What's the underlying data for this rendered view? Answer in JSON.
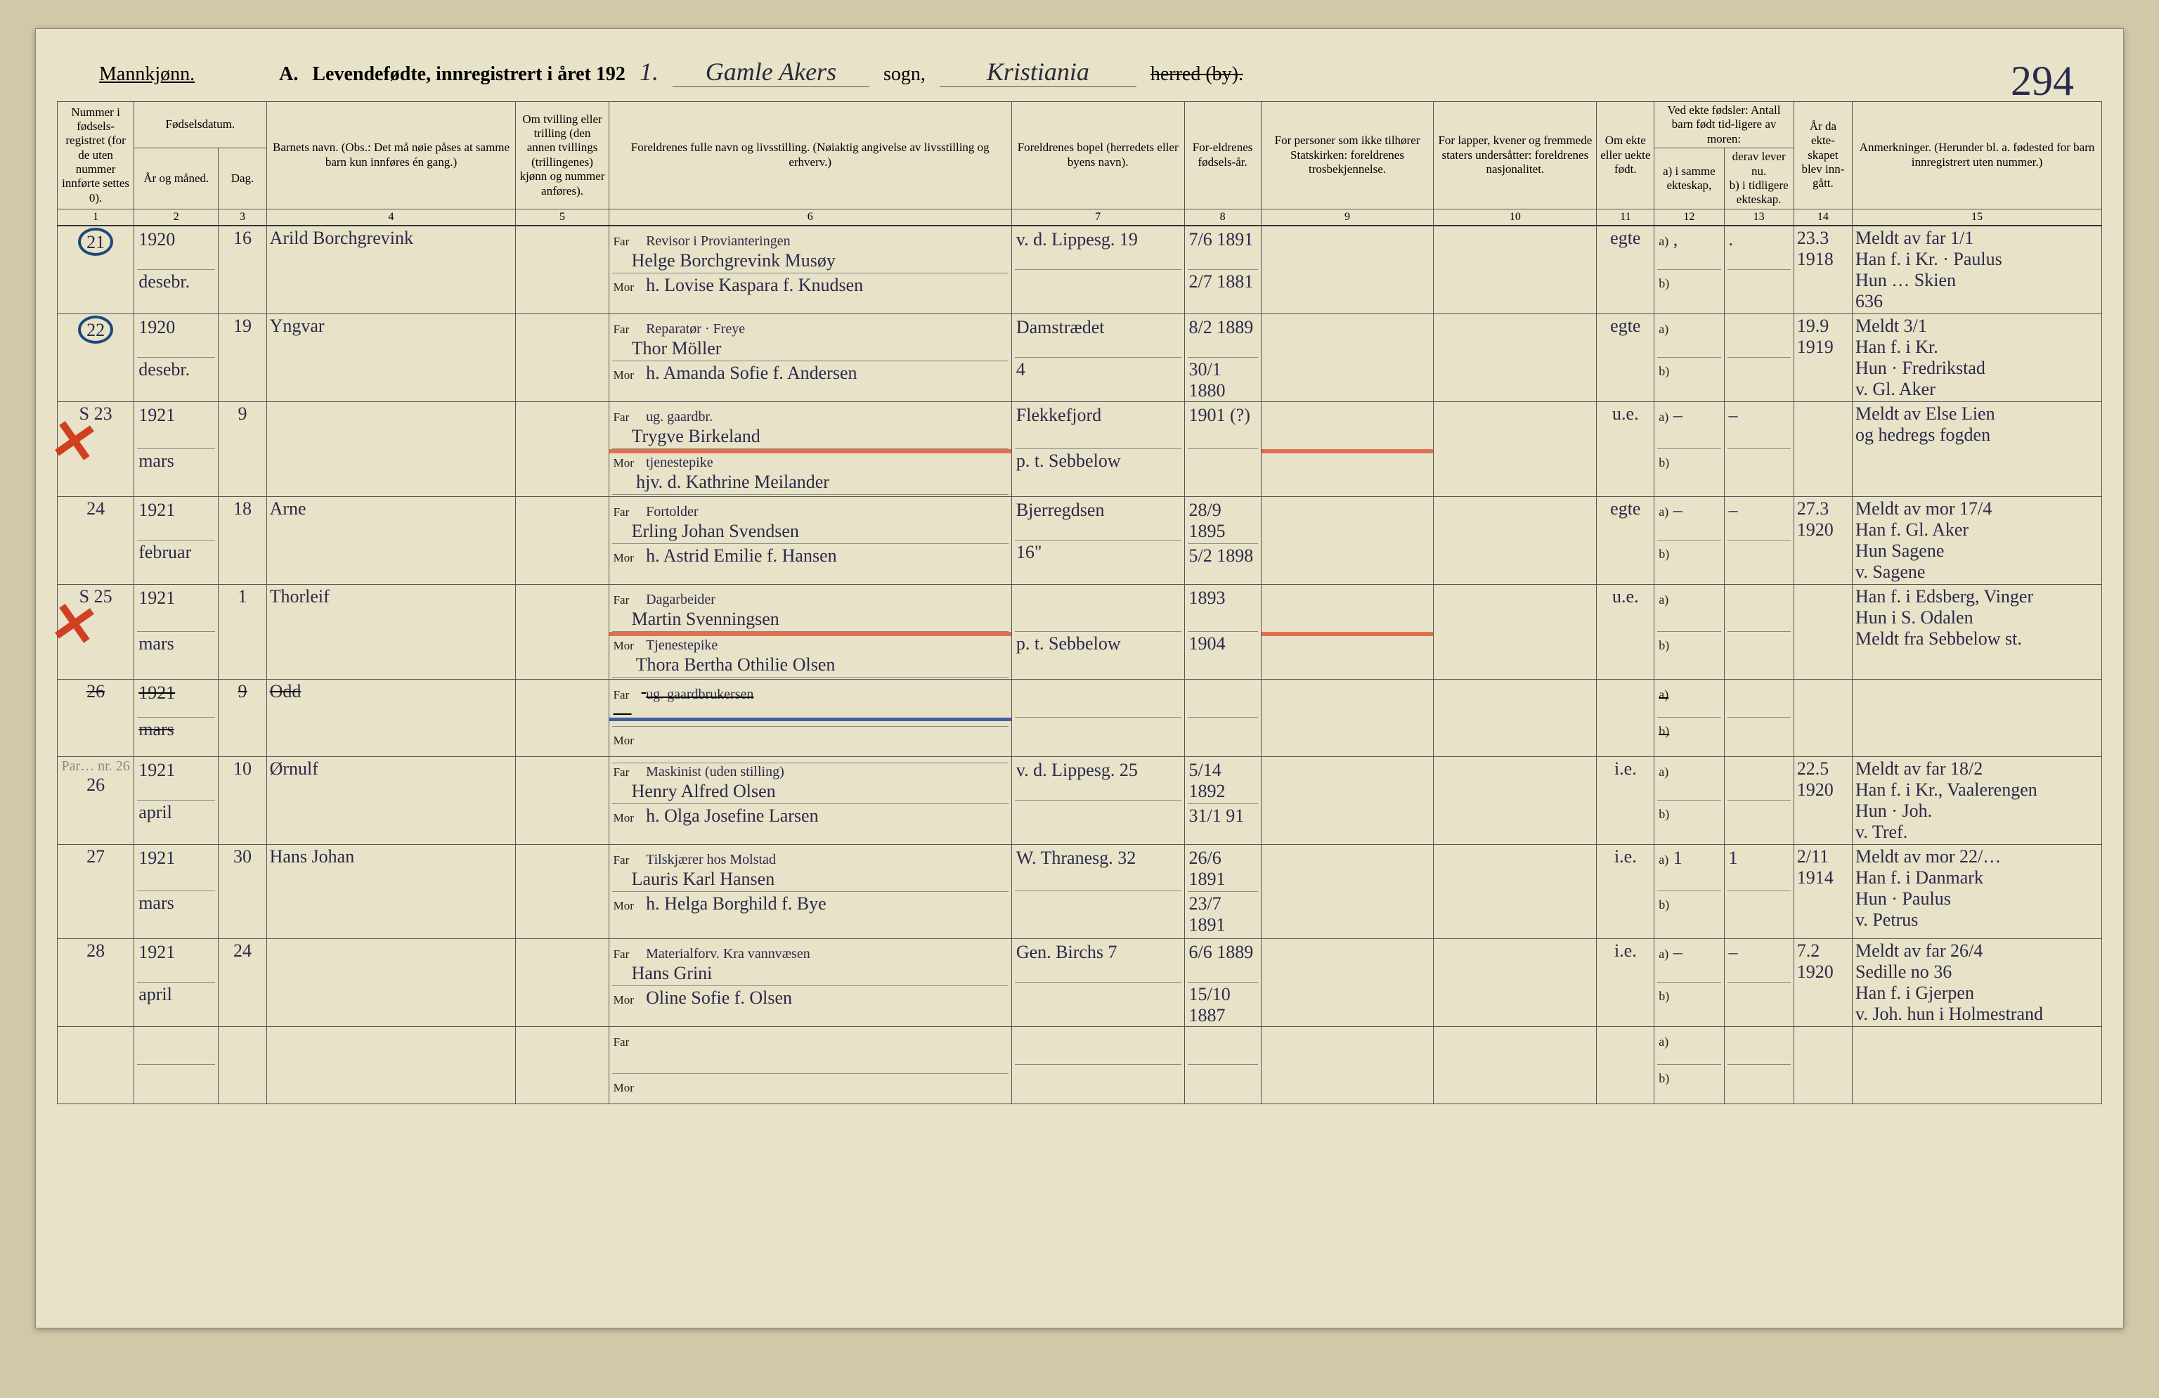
{
  "header": {
    "gender": "Mannkjønn.",
    "title_prefix": "A.",
    "title": "Levendefødte, innregistrert i året 192",
    "year_suffix": "1.",
    "parish_label": "sogn,",
    "district_label": "herred (by).",
    "parish_handwritten": "Gamle Akers",
    "district_handwritten": "Kristiania",
    "page_number": "294"
  },
  "columns": {
    "c1": "Nummer i fødsels-registret (for de uten nummer innførte settes 0).",
    "c2a": "Fødselsdatum.",
    "c2": "År og måned.",
    "c3": "Dag.",
    "c4": "Barnets navn.\n(Obs.: Det må nøie påses at samme barn kun innføres én gang.)",
    "c5": "Om tvilling eller trilling (den annen tvillings (trillingenes) kjønn og nummer anføres).",
    "c6": "Foreldrenes fulle navn og livsstilling.\n(Nøiaktig angivelse av livsstilling og erhverv.)",
    "c7": "Foreldrenes bopel\n(herredets eller byens navn).",
    "c8": "For-eldrenes fødsels-år.",
    "c9": "For personer som ikke tilhører Statskirken:\nforeldrenes trosbekjennelse.",
    "c10": "For lapper, kvener og fremmede staters undersåtter:\nforeldrenes nasjonalitet.",
    "c11": "Om ekte eller uekte født.",
    "c12top": "Ved ekte fødsler:\nAntall barn født tid-ligere av moren:",
    "c12": "a) i samme ekteskap,",
    "c13": "b) i tidligere ekteskap.",
    "c13top": "derav lever nu.",
    "c14": "År da ekte-skapet blev inn-gått.",
    "c15": "Anmerkninger.\n(Herunder bl. a. fødested for barn innregistrert uten nummer.)",
    "far": "Far",
    "mor": "Mor",
    "a": "a)",
    "b": "b)"
  },
  "colnums": [
    "1",
    "2",
    "3",
    "4",
    "5",
    "6",
    "7",
    "8",
    "9",
    "10",
    "11",
    "12",
    "13",
    "14",
    "15"
  ],
  "rows": [
    {
      "num": "21",
      "circled": true,
      "year": "1920",
      "month": "desebr.",
      "day": "16",
      "name": "Arild Borchgrevink",
      "far_occ": "Revisor i Provianteringen",
      "far": "Helge Borchgrevink Musøy",
      "mor": "h. Lovise Kaspara f. Knudsen",
      "bopel_far": "v. d. Lippesg. 19",
      "bopel_mor": "",
      "faar": "7/6 1891",
      "maar": "2/7 1881",
      "ekte": "egte",
      "a12": ",",
      "b12": "",
      "a13": ".",
      "b13": "",
      "aar14": "23.3\n1918",
      "anm": "Meldt av far 1/1\nHan f. i Kr. · Paulus\nHun   …  Skien\n636"
    },
    {
      "num": "22",
      "circled": true,
      "year": "1920",
      "month": "desebr.",
      "day": "19",
      "name": "Yngvar",
      "far_occ": "Reparatør · Freye",
      "far": "Thor Möller",
      "mor": "h. Amanda Sofie f. Andersen",
      "bopel_far": "Damstrædet",
      "bopel_mor": "4",
      "faar": "8/2 1889",
      "maar": "30/1 1880",
      "ekte": "egte",
      "a12": "",
      "b12": "",
      "a13": "",
      "b13": "",
      "aar14": "19.9\n1919",
      "anm": "Meldt 3/1\nHan f. i Kr.\nHun · Fredrikstad\nv. Gl. Aker"
    },
    {
      "num": "23",
      "prefix": "S",
      "redx": true,
      "year": "1921",
      "month": "mars",
      "day": "9",
      "name": "",
      "far_occ": "ug. gaardbr.",
      "far": "Trygve Birkeland",
      "mor_occ": "tjenestepike",
      "mor": "hjv. d. Kathrine Meilander",
      "bopel_far": "Flekkefjord",
      "bopel_mor": "p. t. Sebbelow",
      "faar": "1901 (?)",
      "maar": "",
      "ekte": "u.e.",
      "a12": "–",
      "b12": "",
      "a13": "–",
      "b13": "",
      "aar14": "",
      "anm": "Meldt av Else Lien\nog hedregs fogden",
      "redline": true
    },
    {
      "num": "24",
      "year": "1921",
      "month": "februar",
      "day": "18",
      "name": "Arne",
      "far_occ": "Fortolder",
      "far": "Erling Johan Svendsen",
      "mor": "h. Astrid Emilie f. Hansen",
      "bopel_far": "Bjerregdsen",
      "bopel_mor": "16\"",
      "faar": "28/9 1895",
      "maar": "5/2 1898",
      "ekte": "egte",
      "a12": "–",
      "b12": "",
      "a13": "–",
      "b13": "",
      "aar14": "27.3\n1920",
      "anm": "Meldt av mor 17/4\nHan f. Gl. Aker\nHun Sagene\nv. Sagene"
    },
    {
      "num": "25",
      "prefix": "S",
      "redx": true,
      "year": "1921",
      "month": "mars",
      "day": "1",
      "name": "Thorleif",
      "far_occ": "Dagarbeider",
      "far": "Martin Svenningsen",
      "mor_occ": "Tjenestepike",
      "mor": "Thora Bertha Othilie Olsen",
      "bopel_far": "",
      "bopel_mor": "p. t. Sebbelow",
      "faar": "1893",
      "maar": "1904",
      "ekte": "u.e.",
      "a12": "",
      "b12": "",
      "a13": "",
      "b13": "",
      "aar14": "",
      "anm": "Han f. i Edsberg, Vinger\nHun i S. Odalen\nMeldt fra Sebbelow st.",
      "redline": true
    },
    {
      "num": "26",
      "struck": true,
      "year": "1921",
      "month": "mars",
      "day": "9",
      "name": "Odd",
      "far_occ": "ug. gaardbrukersen",
      "far": "",
      "mor": "",
      "bopel_far": "",
      "bopel_mor": "",
      "faar": "",
      "maar": "",
      "ekte": "",
      "a12": "",
      "b12": "",
      "a13": "",
      "b13": "",
      "aar14": "",
      "anm": "",
      "blueline": true
    },
    {
      "num": "26",
      "note_above": "Par… nr. 26",
      "year": "1921",
      "month": "april",
      "day": "10",
      "name": "Ørnulf",
      "far_occ": "Maskinist (uden stilling)",
      "far": "Henry Alfred Olsen",
      "mor": "h. Olga Josefine Larsen",
      "bopel_far": "v. d. Lippesg. 25",
      "bopel_mor": "",
      "faar": "5/14 1892",
      "maar": "31/1 91",
      "ekte": "i.e.",
      "a12": "",
      "b12": "",
      "a13": "",
      "b13": "",
      "aar14": "22.5\n1920",
      "anm": "Meldt av far 18/2\nHan f. i Kr., Vaalerengen\nHun · Joh.\nv. Tref."
    },
    {
      "num": "27",
      "year": "1921",
      "month": "mars",
      "day": "30",
      "name": "Hans Johan",
      "far_occ": "Tilskjærer hos Molstad",
      "far": "Lauris Karl Hansen",
      "mor": "h. Helga Borghild f. Bye",
      "bopel_far": "W. Thranesg. 32",
      "bopel_mor": "",
      "faar": "26/6 1891",
      "maar": "23/7 1891",
      "ekte": "i.e.",
      "a12": "1",
      "b12": "",
      "a13": "1",
      "b13": "",
      "aar14": "2/11 1914",
      "anm": "Meldt av mor 22/…\nHan f. i Danmark\nHun · Paulus\nv. Petrus"
    },
    {
      "num": "28",
      "year": "1921",
      "month": "april",
      "day": "24",
      "name": "",
      "far_occ": "Materialforv. Kra vannvæsen",
      "far": "Hans Grini",
      "mor": "Oline Sofie f. Olsen",
      "bopel_far": "Gen. Birchs 7",
      "bopel_mor": "",
      "faar": "6/6 1889",
      "maar": "15/10 1887",
      "ekte": "i.e.",
      "a12": "–",
      "b12": "",
      "a13": "–",
      "b13": "",
      "aar14": "7.2\n1920",
      "anm": "Meldt av far 26/4\nSedille no 36\nHan f. i Gjerpen\nv. Joh. hun i Holmestrand"
    },
    {
      "num": "",
      "year": "",
      "month": "",
      "day": "",
      "name": "",
      "far_occ": "",
      "far": "",
      "mor": "",
      "bopel_far": "",
      "bopel_mor": "",
      "faar": "",
      "maar": "",
      "ekte": "",
      "a12": "",
      "b12": "",
      "a13": "",
      "b13": "",
      "aar14": "",
      "anm": ""
    }
  ],
  "colors": {
    "page_bg": "#e8e2c8",
    "body_bg": "#d0c8a8",
    "ink": "#2a2a4a",
    "circle": "#1a4a7a",
    "red": "#e07050",
    "blue": "#4060a0"
  }
}
